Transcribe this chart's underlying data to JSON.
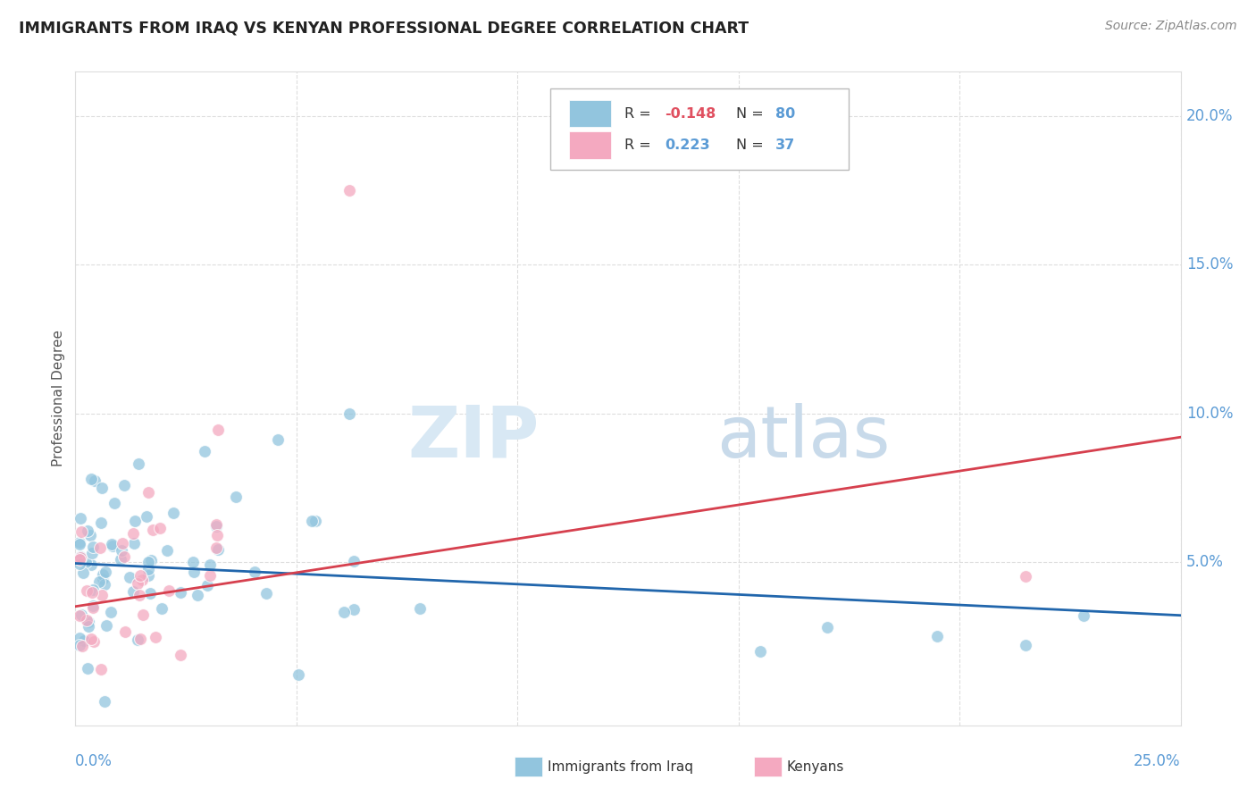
{
  "title": "IMMIGRANTS FROM IRAQ VS KENYAN PROFESSIONAL DEGREE CORRELATION CHART",
  "source": "Source: ZipAtlas.com",
  "ylabel": "Professional Degree",
  "xlim": [
    0.0,
    0.25
  ],
  "ylim": [
    -0.005,
    0.215
  ],
  "yticks": [
    0.05,
    0.1,
    0.15,
    0.2
  ],
  "ytick_labels": [
    "5.0%",
    "10.0%",
    "15.0%",
    "20.0%"
  ],
  "iraq_color": "#92c5de",
  "kenya_color": "#f4a9c0",
  "trendline_iraq_color": "#2166ac",
  "trendline_kenya_color": "#d6404e",
  "background_color": "#ffffff",
  "grid_color": "#dddddd",
  "label_color": "#5b9bd5",
  "R_iraq": -0.148,
  "N_iraq": 80,
  "R_kenya": 0.223,
  "N_kenya": 37,
  "iraq_trend_x": [
    0.0,
    0.25
  ],
  "iraq_trend_y": [
    0.0495,
    0.032
  ],
  "kenya_trend_x": [
    0.0,
    0.25
  ],
  "kenya_trend_y": [
    0.035,
    0.092
  ],
  "marker_size": 100
}
